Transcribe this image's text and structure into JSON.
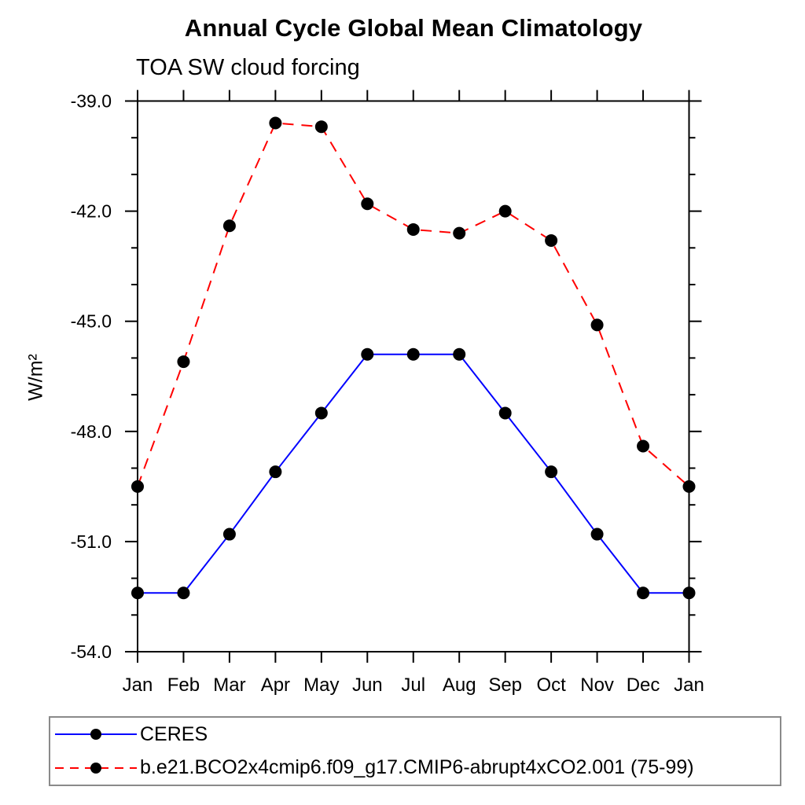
{
  "chart": {
    "title": "Annual Cycle Global Mean Climatology",
    "subtitle": "TOA SW cloud forcing",
    "ylabel": "W/m²"
  },
  "chart_data": {
    "type": "line",
    "categories": [
      "Jan",
      "Feb",
      "Mar",
      "Apr",
      "May",
      "Jun",
      "Jul",
      "Aug",
      "Sep",
      "Oct",
      "Nov",
      "Dec",
      "Jan"
    ],
    "series": [
      {
        "name": "CERES",
        "color": "#0000ff",
        "line_style": "solid",
        "marker": "circle",
        "marker_color": "#000000",
        "values": [
          -52.4,
          -52.4,
          -50.8,
          -49.1,
          -47.5,
          -45.9,
          -45.9,
          -45.9,
          -47.5,
          -49.1,
          -50.8,
          -52.4,
          -52.4
        ]
      },
      {
        "name": "b.e21.BCO2x4cmip6.f09_g17.CMIP6-abrupt4xCO2.001 (75-99)",
        "color": "#ff0000",
        "line_style": "dashed",
        "marker": "circle",
        "marker_color": "#000000",
        "values": [
          -49.5,
          -46.1,
          -42.4,
          -39.6,
          -39.7,
          -41.8,
          -42.5,
          -42.6,
          -42.0,
          -42.8,
          -45.1,
          -48.4,
          -49.5
        ]
      }
    ],
    "ylim": [
      -54.0,
      -39.0
    ],
    "yticks_major": [
      -39.0,
      -42.0,
      -45.0,
      -48.0,
      -51.0,
      -54.0
    ],
    "ytick_minor_step": 1.0,
    "xlabel": "",
    "ylabel": "W/m²",
    "grid": false,
    "legend_position": "bottom",
    "axis_color": "#000000",
    "background_color": "#ffffff"
  }
}
